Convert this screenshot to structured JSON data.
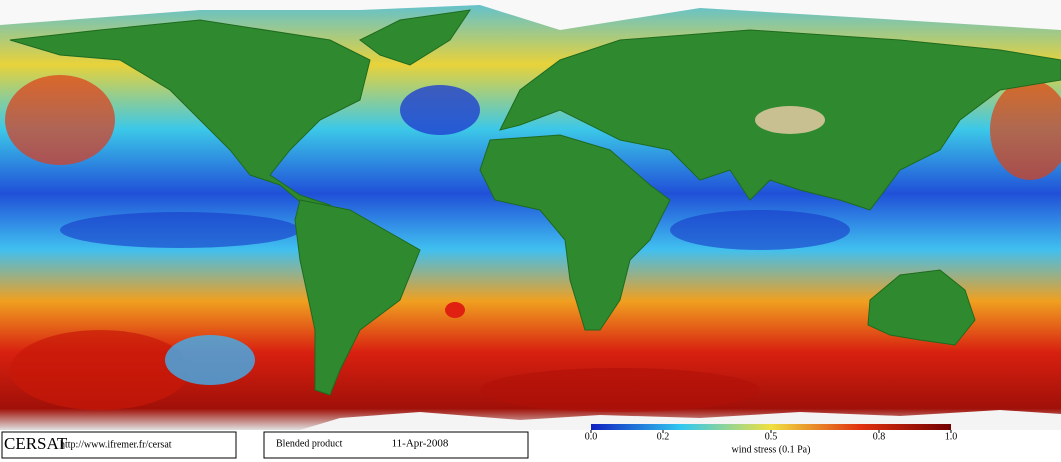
{
  "footer": {
    "logo": "CERSAT",
    "url": "http://www.ifremer.fr/cersat",
    "product": "Blended product",
    "date": "11-Apr-2008"
  },
  "colorbar": {
    "lim": [
      0,
      1
    ],
    "ticks": [
      {
        "value": 0,
        "label": "0.0"
      },
      0.2,
      0.5,
      0.8,
      {
        "value": 1,
        "label": "1.0"
      }
    ],
    "label": "wind stress (0.1 Pa)"
  }
}
